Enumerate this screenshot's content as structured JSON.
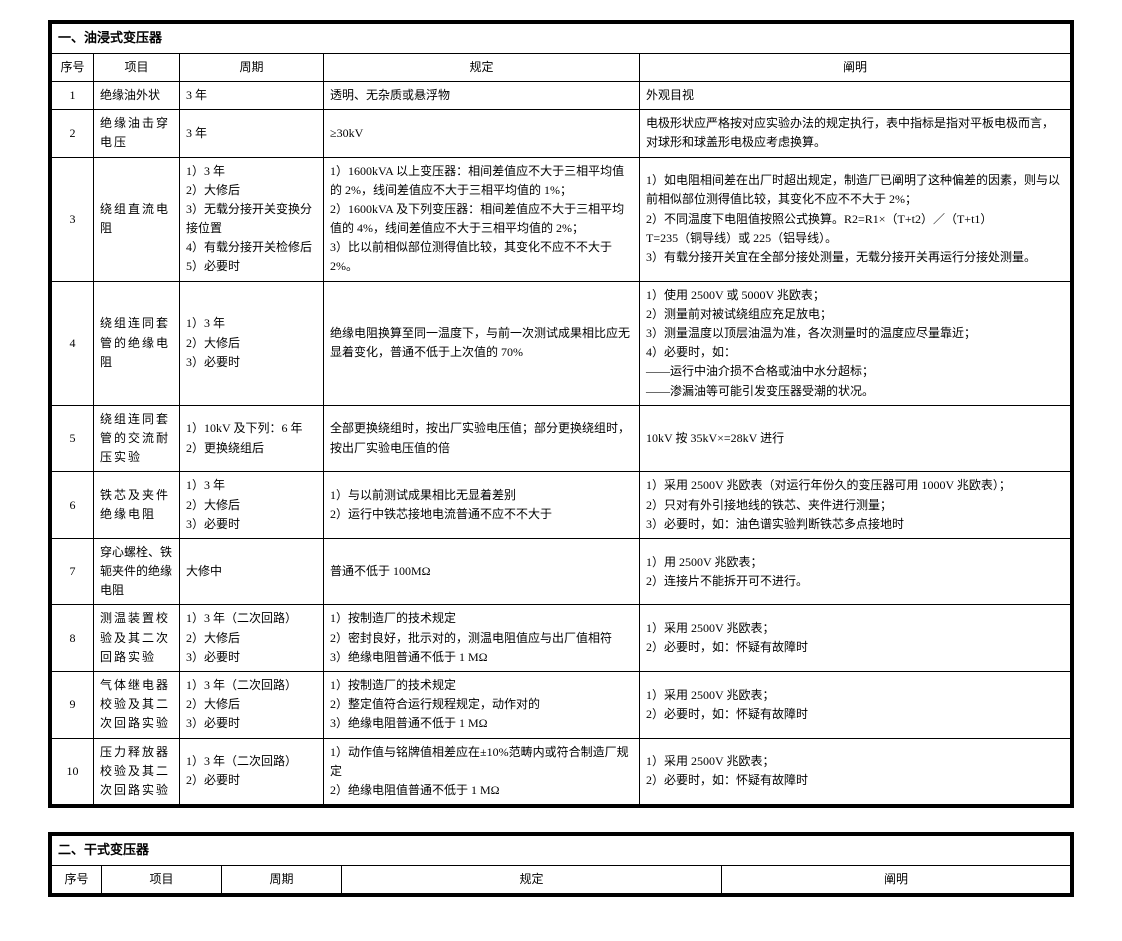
{
  "table1": {
    "title": "一、油浸式变压器",
    "headers": {
      "seq": "序号",
      "item": "项目",
      "period": "周期",
      "rule": "规定",
      "note": "阐明"
    },
    "rows": [
      {
        "seq": "1",
        "item": "绝缘油外状",
        "period": "3 年",
        "rule": "透明、无杂质或悬浮物",
        "note": "外观目视"
      },
      {
        "seq": "2",
        "item": "绝缘油击穿电压",
        "period": "3 年",
        "rule": "≥30kV",
        "note": "电极形状应严格按对应实验办法的规定执行，表中指标是指对平板电极而言，对球形和球盖形电极应考虑换算。"
      },
      {
        "seq": "3",
        "item": "绕组直流电阻",
        "period": "1）3 年\n2）大修后\n3）无载分接开关变换分接位置\n4）有载分接开关检修后\n5）必要时",
        "rule": "1）1600kVA 以上变压器：相间差值应不大于三相平均值的 2%，线间差值应不大于三相平均值的 1%；\n2）1600kVA 及下列变压器：相间差值应不大于三相平均值的 4%，线间差值应不大于三相平均值的 2%；\n3）比以前相似部位测得值比较，其变化不应不不大于 2%。",
        "note": "1）如电阻相间差在出厂时超出规定，制造厂已阐明了这种偏差的因素，则与以前相似部位测得值比较，其变化不应不不大于 2%；\n2）不同温度下电阻值按照公式换算。R2=R1×（T+t2）／（T+t1）\nT=235（铜导线）或 225（铝导线）。\n3）有载分接开关宜在全部分接处测量，无载分接开关再运行分接处测量。"
      },
      {
        "seq": "4",
        "item": "绕组连同套管的绝缘电阻",
        "period": "1）3 年\n2）大修后\n3）必要时",
        "rule": "绝缘电阻换算至同一温度下，与前一次测试成果相比应无显着变化，普通不低于上次值的 70%",
        "note": "1）使用 2500V 或 5000V 兆欧表；\n2）测量前对被试绕组应充足放电；\n3）测量温度以顶层油温为准，各次测量时的温度应尽量靠近；\n4）必要时，如：\n——运行中油介损不合格或油中水分超标；\n——渗漏油等可能引发变压器受潮的状况。"
      },
      {
        "seq": "5",
        "item": "绕组连同套管的交流耐压实验",
        "period": "1）10kV 及下列：6 年\n2）更换绕组后",
        "rule": "全部更换绕组时，按出厂实验电压值；部分更换绕组时，按出厂实验电压值的倍",
        "note": "10kV 按 35kV×=28kV 进行"
      },
      {
        "seq": "6",
        "item": "铁芯及夹件绝缘电阻",
        "period": "1）3 年\n2）大修后\n3）必要时",
        "rule": "1）与以前测试成果相比无显着差别\n2）运行中铁芯接地电流普通不应不不大于",
        "note": "1）采用 2500V 兆欧表（对运行年份久的变压器可用 1000V 兆欧表）；\n2）只对有外引接地线的铁芯、夹件进行测量；\n3）必要时，如：油色谱实验判断铁芯多点接地时"
      },
      {
        "seq": "7",
        "item": "穿心螺栓、铁轭夹件的绝缘电阻",
        "period": "大修中",
        "rule": "普通不低于 100MΩ",
        "note": "1）用 2500V 兆欧表；\n2）连接片不能拆开可不进行。"
      },
      {
        "seq": "8",
        "item": "测温装置校验及其二次回路实验",
        "period": "1）3 年（二次回路）\n2）大修后\n3）必要时",
        "rule": "1）按制造厂的技术规定\n2）密封良好，批示对的，测温电阻值应与出厂值相符\n3）绝缘电阻普通不低于 1 MΩ",
        "note": "1）采用 2500V 兆欧表；\n2）必要时，如：怀疑有故障时"
      },
      {
        "seq": "9",
        "item": "气体继电器校验及其二次回路实验",
        "period": "1）3 年（二次回路）\n2）大修后\n3）必要时",
        "rule": "1）按制造厂的技术规定\n2）整定值符合运行规程规定，动作对的\n3）绝缘电阻普通不低于 1 MΩ",
        "note": "1）采用 2500V 兆欧表；\n2）必要时，如：怀疑有故障时"
      },
      {
        "seq": "10",
        "item": "压力释放器校验及其二次回路实验",
        "period": "1）3 年（二次回路）\n2）必要时",
        "rule": "1）动作值与铭牌值相差应在±10%范畴内或符合制造厂规定\n2）绝缘电阻值普通不低于 1 MΩ",
        "note": "1）采用 2500V 兆欧表；\n2）必要时，如：怀疑有故障时"
      }
    ]
  },
  "table2": {
    "title": "二、干式变压器",
    "headers": {
      "seq": "序号",
      "item": "项目",
      "period": "周期",
      "rule": "规定",
      "note": "阐明"
    }
  }
}
